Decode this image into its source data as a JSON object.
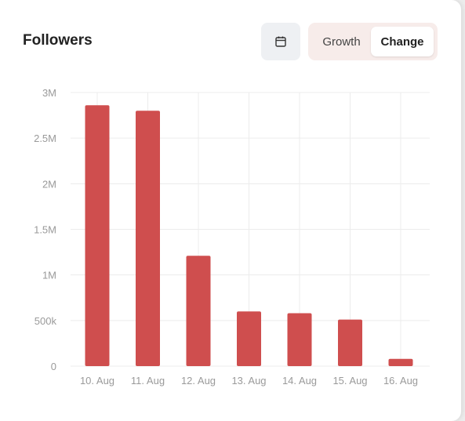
{
  "header": {
    "title": "Followers",
    "calendar_icon": "calendar-icon",
    "toggle": {
      "growth_label": "Growth",
      "change_label": "Change",
      "selected": "Change"
    }
  },
  "colors": {
    "bar": "#cf4e4e",
    "grid": "#ececec",
    "toggle_bg": "#f7ecea"
  },
  "chart_data": {
    "type": "bar",
    "categories": [
      "10. Aug",
      "11. Aug",
      "12. Aug",
      "13. Aug",
      "14. Aug",
      "15. Aug",
      "16. Aug"
    ],
    "values": [
      2860000,
      2800000,
      1210000,
      600000,
      580000,
      510000,
      80000
    ],
    "ylim": [
      0,
      3000000
    ],
    "yticks": [
      0,
      500000,
      1000000,
      1500000,
      2000000,
      2500000,
      3000000
    ],
    "ytick_labels": [
      "0",
      "500k",
      "1M",
      "1.5M",
      "2M",
      "2.5M",
      "3M"
    ],
    "title": "",
    "xlabel": "",
    "ylabel": "",
    "grid": true
  }
}
